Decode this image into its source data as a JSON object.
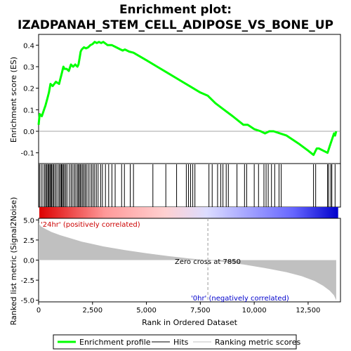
{
  "chart_data": {
    "type": "line",
    "title": "Enrichment plot:",
    "subtitle": "IZADPANAH_STEM_CELL_ADIPOSE_VS_BONE_UP",
    "x_label": "Rank in Ordered Dataset",
    "x_ticks": [
      "0",
      "2,500",
      "5,000",
      "7,500",
      "10,000",
      "12,500"
    ],
    "x_range": [
      0,
      14000
    ],
    "panels": {
      "es": {
        "ylabel": "Enrichment score (ES)",
        "y_ticks": [
          "0.4",
          "0.3",
          "0.2",
          "0.1",
          "0.0",
          "-0.1"
        ],
        "ylim": [
          -0.15,
          0.45
        ],
        "series": [
          {
            "name": "Enrichment profile",
            "color": "#00ff00",
            "x": [
              0,
              50,
              150,
              250,
              320,
              400,
              480,
              550,
              650,
              800,
              950,
              1000,
              1050,
              1100,
              1150,
              1200,
              1300,
              1400,
              1500,
              1600,
              1700,
              1800,
              1850,
              1900,
              1950,
              2000,
              2100,
              2200,
              2300,
              2400,
              2500,
              2600,
              2700,
              2800,
              2900,
              3000,
              3200,
              3400,
              3600,
              3800,
              3900,
              4000,
              4200,
              4400,
              5000,
              5500,
              6000,
              6500,
              7000,
              7500,
              7850,
              8200,
              8600,
              9000,
              9500,
              9700,
              10000,
              10300,
              10500,
              10700,
              10900,
              11200,
              11500,
              11800,
              12100,
              12500,
              12750,
              12800,
              12900,
              13000,
              13200,
              13400,
              13500,
              13600,
              13700,
              13750,
              13800
            ],
            "y": [
              0.03,
              0.08,
              0.07,
              0.1,
              0.12,
              0.15,
              0.18,
              0.22,
              0.21,
              0.23,
              0.22,
              0.24,
              0.26,
              0.28,
              0.3,
              0.29,
              0.29,
              0.28,
              0.31,
              0.3,
              0.31,
              0.3,
              0.31,
              0.34,
              0.37,
              0.38,
              0.39,
              0.385,
              0.39,
              0.4,
              0.405,
              0.415,
              0.41,
              0.415,
              0.41,
              0.415,
              0.4,
              0.4,
              0.39,
              0.38,
              0.375,
              0.38,
              0.37,
              0.365,
              0.33,
              0.3,
              0.27,
              0.24,
              0.21,
              0.18,
              0.165,
              0.13,
              0.1,
              0.07,
              0.03,
              0.03,
              0.01,
              0.0,
              -0.01,
              0.0,
              0.0,
              -0.01,
              -0.02,
              -0.04,
              -0.06,
              -0.09,
              -0.11,
              -0.1,
              -0.08,
              -0.08,
              -0.09,
              -0.1,
              -0.07,
              -0.04,
              -0.01,
              -0.02,
              0.0
            ]
          }
        ]
      },
      "hits": {
        "label": "Hits",
        "positions": [
          40,
          120,
          200,
          280,
          330,
          380,
          430,
          470,
          520,
          560,
          600,
          650,
          700,
          760,
          820,
          900,
          960,
          1020,
          1060,
          1100,
          1150,
          1200,
          1260,
          1320,
          1420,
          1500,
          1560,
          1640,
          1700,
          1780,
          1830,
          1880,
          1930,
          1980,
          2040,
          2100,
          2160,
          2220,
          2300,
          2380,
          2460,
          2530,
          2600,
          2680,
          2760,
          2880,
          2960,
          3100,
          3250,
          3400,
          3550,
          3850,
          3980,
          4250,
          4400,
          5300,
          5900,
          6400,
          6850,
          6950,
          7050,
          7150,
          7250,
          7900,
          8050,
          8300,
          8450,
          8550,
          8700,
          8800,
          9200,
          9550,
          9650,
          10000,
          10200,
          10450,
          10550,
          10650,
          10800,
          10950,
          11150,
          11250,
          12750,
          12850,
          13400,
          13450,
          13550,
          13600,
          13750
        ],
        "gradient_colors": [
          "#dd0000",
          "#ff9999",
          "#ffd0d0",
          "#dcdcff",
          "#6666ff",
          "#0000cc"
        ]
      },
      "metric": {
        "ylabel": "Ranked list metric (Signal2Noise)",
        "y_ticks": [
          "5.0",
          "2.5",
          "0.0",
          "-2.5",
          "-5.0"
        ],
        "ylim": [
          -5.2,
          5.2
        ],
        "positive_label": "'24hr' (positively correlated)",
        "negative_label": "'0hr' (negatively correlated)",
        "zero_cross_label": "Zero cross at 7850",
        "zero_cross": 7850,
        "profile": {
          "x": [
            0,
            100,
            300,
            600,
            1000,
            1500,
            2000,
            3000,
            4000,
            5000,
            6000,
            7000,
            7850,
            8500,
            9500,
            10500,
            11500,
            12200,
            12800,
            13200,
            13500,
            13700,
            13800
          ],
          "y": [
            4.6,
            4.2,
            3.9,
            3.5,
            3.1,
            2.7,
            2.3,
            1.7,
            1.25,
            0.85,
            0.5,
            0.2,
            0.0,
            -0.2,
            -0.55,
            -1.0,
            -1.5,
            -2.0,
            -2.6,
            -3.2,
            -3.8,
            -4.4,
            -5.0
          ]
        },
        "fill_color": "#c0c0c0"
      }
    },
    "legend": [
      {
        "label": "Enrichment profile",
        "color": "#00ff00"
      },
      {
        "label": "Hits",
        "color": "#000000"
      },
      {
        "label": "Ranking metric scores",
        "color": "#c0c0c0"
      }
    ]
  }
}
